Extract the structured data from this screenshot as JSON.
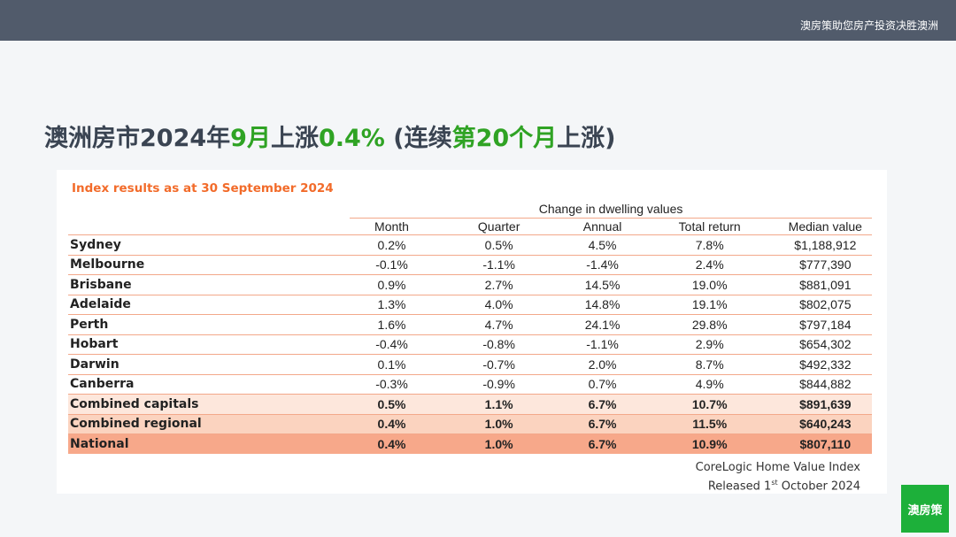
{
  "topbar": {
    "tagline": "澳房策助您房产投资决胜澳洲"
  },
  "headline": {
    "part1": "澳洲房市2024年",
    "part2": "9月",
    "part3": "上涨",
    "part4": "0.4%",
    "part5": " (连续",
    "part6": "第20个月",
    "part7": "上涨)"
  },
  "table": {
    "title": "Index results as at 30 September 2024",
    "group_header": "Change in dwelling values",
    "columns": [
      "Month",
      "Quarter",
      "Annual",
      "Total return",
      "Median value"
    ],
    "rows": [
      {
        "name": "Sydney",
        "values": [
          "0.2%",
          "0.5%",
          "4.5%",
          "7.8%",
          "$1,188,912"
        ]
      },
      {
        "name": "Melbourne",
        "values": [
          "-0.1%",
          "-1.1%",
          "-1.4%",
          "2.4%",
          "$777,390"
        ]
      },
      {
        "name": "Brisbane",
        "values": [
          "0.9%",
          "2.7%",
          "14.5%",
          "19.0%",
          "$881,091"
        ]
      },
      {
        "name": "Adelaide",
        "values": [
          "1.3%",
          "4.0%",
          "14.8%",
          "19.1%",
          "$802,075"
        ]
      },
      {
        "name": "Perth",
        "values": [
          "1.6%",
          "4.7%",
          "24.1%",
          "29.8%",
          "$797,184"
        ]
      },
      {
        "name": "Hobart",
        "values": [
          "-0.4%",
          "-0.8%",
          "-1.1%",
          "2.9%",
          "$654,302"
        ]
      },
      {
        "name": "Darwin",
        "values": [
          "0.1%",
          "-0.7%",
          "2.0%",
          "8.7%",
          "$492,332"
        ]
      },
      {
        "name": "Canberra",
        "values": [
          "-0.3%",
          "-0.9%",
          "0.7%",
          "4.9%",
          "$844,882"
        ]
      },
      {
        "name": "Combined capitals",
        "values": [
          "0.5%",
          "1.1%",
          "6.7%",
          "10.7%",
          "$891,639"
        ]
      },
      {
        "name": "Combined regional",
        "values": [
          "0.4%",
          "1.0%",
          "6.7%",
          "11.5%",
          "$640,243"
        ]
      },
      {
        "name": "National",
        "values": [
          "0.4%",
          "1.0%",
          "6.7%",
          "10.9%",
          "$807,110"
        ]
      }
    ]
  },
  "source": {
    "line1": "CoreLogic Home Value Index",
    "line2_a": "Released 1",
    "line2_sup": "st",
    "line2_b": " October 2024"
  },
  "logo": {
    "text": "澳房策"
  },
  "colors": {
    "accent_green": "#2fa324",
    "title_orange": "#f26b2a",
    "bar": "#515b6b",
    "logo_green": "#1db03a"
  }
}
